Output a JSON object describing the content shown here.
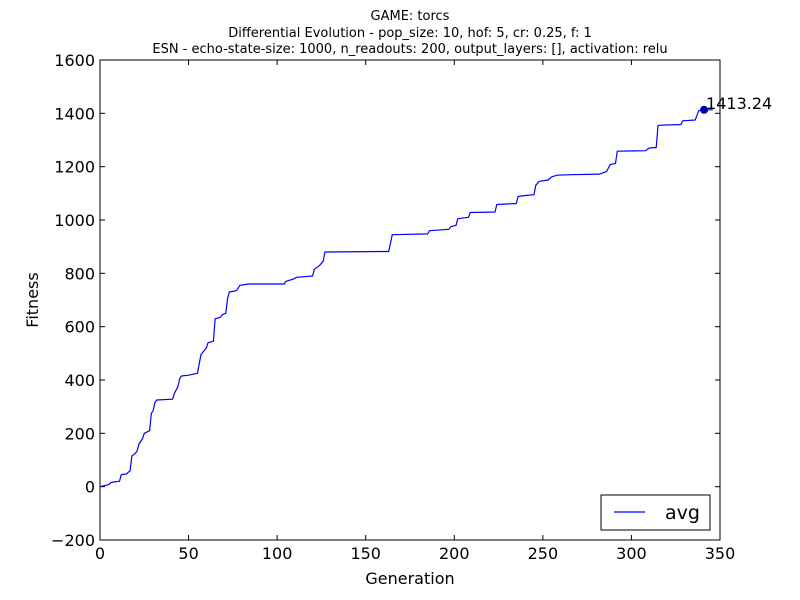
{
  "chart_data": {
    "type": "line",
    "title_lines": [
      "GAME: torcs",
      "Differential Evolution - pop_size: 10, hof: 5, cr: 0.25, f: 1",
      "ESN - echo-state-size: 1000, n_readouts: 200, output_layers: [], activation: relu"
    ],
    "xlabel": "Generation",
    "ylabel": "Fitness",
    "xlim": [
      0,
      350
    ],
    "ylim": [
      -200,
      1600
    ],
    "xticks": [
      "0",
      "50",
      "100",
      "150",
      "200",
      "250",
      "300",
      "350"
    ],
    "yticks": [
      "−200",
      "0",
      "200",
      "400",
      "600",
      "800",
      "1000",
      "1200",
      "1400",
      "1600"
    ],
    "grid": false,
    "legend": {
      "position": "lower-right",
      "entries": [
        "avg"
      ]
    },
    "series": [
      {
        "name": "avg",
        "color": "#0000ff",
        "points": [
          [
            0,
            0
          ],
          [
            3,
            5
          ],
          [
            5,
            8
          ],
          [
            6,
            15
          ],
          [
            8,
            18
          ],
          [
            11,
            20
          ],
          [
            12,
            45
          ],
          [
            15,
            48
          ],
          [
            17,
            60
          ],
          [
            18,
            115
          ],
          [
            20,
            125
          ],
          [
            21,
            135
          ],
          [
            22,
            160
          ],
          [
            24,
            180
          ],
          [
            25,
            200
          ],
          [
            28,
            210
          ],
          [
            29,
            275
          ],
          [
            30,
            285
          ],
          [
            31,
            315
          ],
          [
            32,
            325
          ],
          [
            41,
            328
          ],
          [
            42,
            350
          ],
          [
            44,
            375
          ],
          [
            45,
            405
          ],
          [
            46,
            415
          ],
          [
            50,
            418
          ],
          [
            55,
            425
          ],
          [
            56,
            460
          ],
          [
            57,
            495
          ],
          [
            60,
            520
          ],
          [
            61,
            540
          ],
          [
            64,
            545
          ],
          [
            65,
            630
          ],
          [
            68,
            635
          ],
          [
            69,
            645
          ],
          [
            71,
            650
          ],
          [
            72,
            705
          ],
          [
            73,
            730
          ],
          [
            77,
            735
          ],
          [
            79,
            755
          ],
          [
            84,
            760
          ],
          [
            104,
            760
          ],
          [
            105,
            770
          ],
          [
            109,
            778
          ],
          [
            111,
            785
          ],
          [
            120,
            790
          ],
          [
            121,
            815
          ],
          [
            124,
            830
          ],
          [
            126,
            845
          ],
          [
            127,
            880
          ],
          [
            163,
            882
          ],
          [
            165,
            945
          ],
          [
            185,
            948
          ],
          [
            186,
            960
          ],
          [
            197,
            965
          ],
          [
            198,
            975
          ],
          [
            201,
            980
          ],
          [
            202,
            1005
          ],
          [
            208,
            1010
          ],
          [
            209,
            1028
          ],
          [
            223,
            1030
          ],
          [
            224,
            1058
          ],
          [
            235,
            1062
          ],
          [
            236,
            1088
          ],
          [
            240,
            1092
          ],
          [
            245,
            1095
          ],
          [
            246,
            1130
          ],
          [
            248,
            1145
          ],
          [
            253,
            1150
          ],
          [
            255,
            1162
          ],
          [
            258,
            1168
          ],
          [
            266,
            1170
          ],
          [
            282,
            1172
          ],
          [
            286,
            1182
          ],
          [
            288,
            1208
          ],
          [
            291,
            1212
          ],
          [
            292,
            1258
          ],
          [
            308,
            1260
          ],
          [
            310,
            1270
          ],
          [
            314,
            1272
          ],
          [
            315,
            1355
          ],
          [
            328,
            1358
          ],
          [
            329,
            1372
          ],
          [
            336,
            1375
          ],
          [
            338,
            1410
          ],
          [
            341,
            1413.24
          ],
          [
            346,
            1413.24
          ]
        ]
      }
    ],
    "annotation": {
      "x": 341,
      "y": 1413.24,
      "text": "1413.24"
    }
  }
}
